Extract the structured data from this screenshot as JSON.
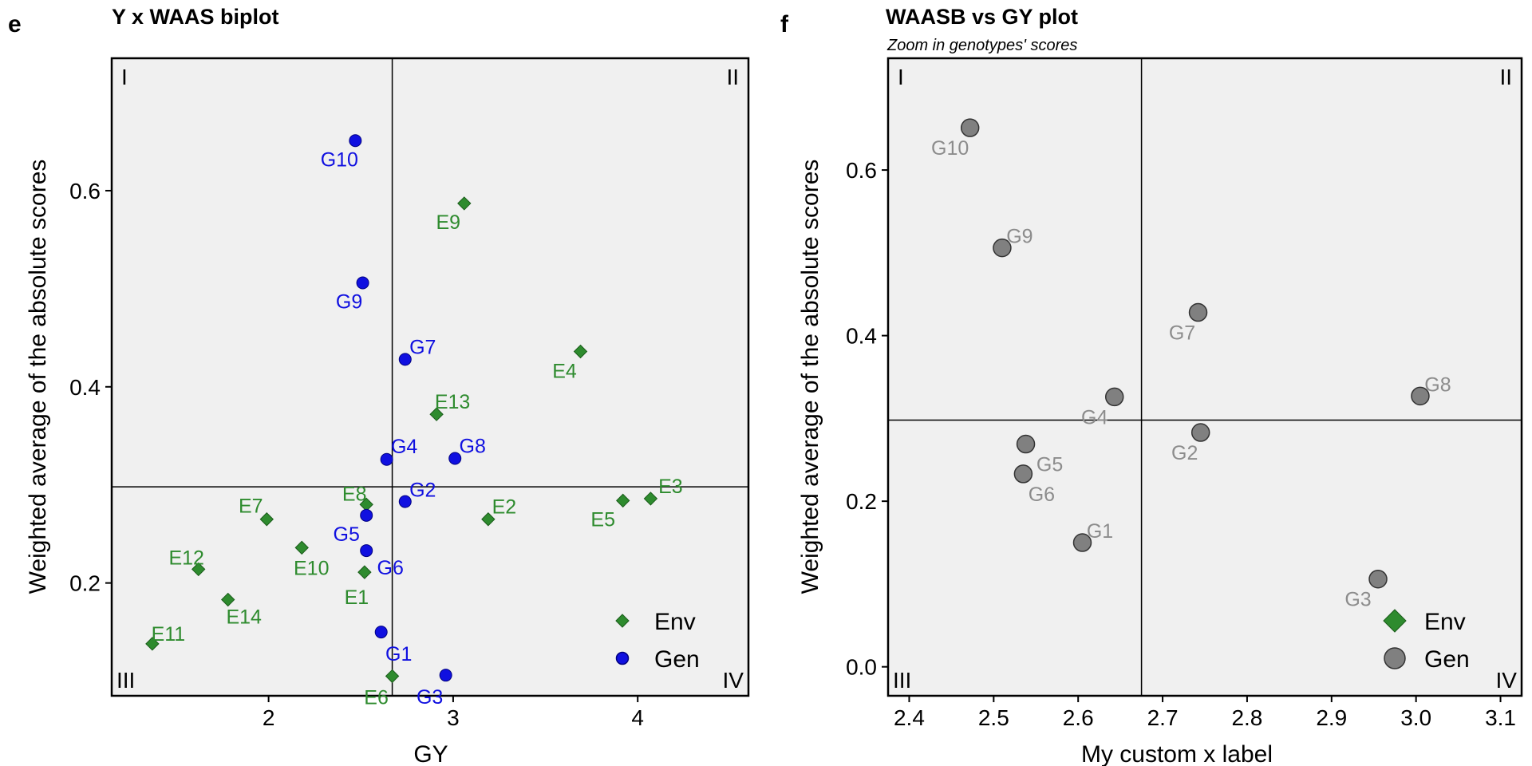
{
  "colors": {
    "env": "#2e8b2e",
    "gen": "#1010e0",
    "gen_zoom": "#808080",
    "gen_zoom_label": "#8c8c8c",
    "panel_bg": "#f0f0f0"
  },
  "chart_data": [
    {
      "type": "scatter",
      "panel_letter": "e",
      "title": "Y x WAAS biplot",
      "subtitle": "",
      "xlabel": "GY",
      "ylabel": "Weighted average of the absolute scores",
      "xlim": [
        1.15,
        4.6
      ],
      "ylim": [
        0.085,
        0.735
      ],
      "xticks": [
        2,
        3,
        4
      ],
      "yticks": [
        0.2,
        0.4,
        0.6
      ],
      "xtick_labels": [
        "2",
        "3",
        "4"
      ],
      "ytick_labels": [
        "0.2",
        "0.4",
        "0.6"
      ],
      "grid": false,
      "reference_lines": {
        "vline": 2.67,
        "hline": 0.298
      },
      "quadrant_labels": [
        "I",
        "II",
        "III",
        "IV"
      ],
      "legend": {
        "position": "bottom-right",
        "entries": [
          "Env",
          "Gen"
        ]
      },
      "series": [
        {
          "name": "Env",
          "marker": "diamond",
          "points": [
            {
              "label": "E1",
              "x": 2.52,
              "y": 0.211
            },
            {
              "label": "E2",
              "x": 3.19,
              "y": 0.265
            },
            {
              "label": "E3",
              "x": 4.07,
              "y": 0.286
            },
            {
              "label": "E4",
              "x": 3.69,
              "y": 0.436
            },
            {
              "label": "E5",
              "x": 3.92,
              "y": 0.284
            },
            {
              "label": "E6",
              "x": 2.67,
              "y": 0.105
            },
            {
              "label": "E7",
              "x": 1.99,
              "y": 0.265
            },
            {
              "label": "E8",
              "x": 2.53,
              "y": 0.28
            },
            {
              "label": "E9",
              "x": 3.06,
              "y": 0.587
            },
            {
              "label": "E10",
              "x": 2.18,
              "y": 0.236
            },
            {
              "label": "E11",
              "x": 1.37,
              "y": 0.138
            },
            {
              "label": "E12",
              "x": 1.62,
              "y": 0.214
            },
            {
              "label": "E13",
              "x": 2.91,
              "y": 0.372
            },
            {
              "label": "E14",
              "x": 1.78,
              "y": 0.183
            }
          ]
        },
        {
          "name": "Gen",
          "marker": "circle",
          "points": [
            {
              "label": "G1",
              "x": 2.61,
              "y": 0.15
            },
            {
              "label": "G2",
              "x": 2.74,
              "y": 0.283
            },
            {
              "label": "G3",
              "x": 2.96,
              "y": 0.106
            },
            {
              "label": "G4",
              "x": 2.64,
              "y": 0.326
            },
            {
              "label": "G5",
              "x": 2.53,
              "y": 0.269
            },
            {
              "label": "G6",
              "x": 2.53,
              "y": 0.233
            },
            {
              "label": "G7",
              "x": 2.74,
              "y": 0.428
            },
            {
              "label": "G8",
              "x": 3.01,
              "y": 0.327
            },
            {
              "label": "G9",
              "x": 2.51,
              "y": 0.506
            },
            {
              "label": "G10",
              "x": 2.47,
              "y": 0.651
            }
          ]
        }
      ]
    },
    {
      "type": "scatter",
      "panel_letter": "f",
      "title": "WAASB vs GY plot",
      "subtitle": "Zoom in genotypes' scores",
      "xlabel": "My custom x label",
      "ylabel": "Weighted average of the absolute scores",
      "xlim": [
        2.375,
        3.125
      ],
      "ylim": [
        -0.035,
        0.735
      ],
      "xticks": [
        2.4,
        2.5,
        2.6,
        2.7,
        2.8,
        2.9,
        3.0,
        3.1
      ],
      "yticks": [
        0.0,
        0.2,
        0.4,
        0.6
      ],
      "xtick_labels": [
        "2.4",
        "2.5",
        "2.6",
        "2.7",
        "2.8",
        "2.9",
        "3.0",
        "3.1"
      ],
      "ytick_labels": [
        "0.0",
        "0.2",
        "0.4",
        "0.6"
      ],
      "grid": false,
      "reference_lines": {
        "vline": 2.675,
        "hline": 0.298
      },
      "quadrant_labels": [
        "I",
        "II",
        "III",
        "IV"
      ],
      "legend": {
        "position": "bottom-right",
        "entries": [
          "Env",
          "Gen"
        ]
      },
      "series": [
        {
          "name": "Gen",
          "marker": "circle",
          "points": [
            {
              "label": "G1",
              "x": 2.605,
              "y": 0.15
            },
            {
              "label": "G2",
              "x": 2.745,
              "y": 0.283
            },
            {
              "label": "G3",
              "x": 2.955,
              "y": 0.106
            },
            {
              "label": "G4",
              "x": 2.643,
              "y": 0.326
            },
            {
              "label": "G5",
              "x": 2.538,
              "y": 0.269
            },
            {
              "label": "G6",
              "x": 2.535,
              "y": 0.233
            },
            {
              "label": "G7",
              "x": 2.742,
              "y": 0.428
            },
            {
              "label": "G8",
              "x": 3.005,
              "y": 0.327
            },
            {
              "label": "G9",
              "x": 2.51,
              "y": 0.506
            },
            {
              "label": "G10",
              "x": 2.472,
              "y": 0.651
            }
          ]
        }
      ]
    }
  ]
}
